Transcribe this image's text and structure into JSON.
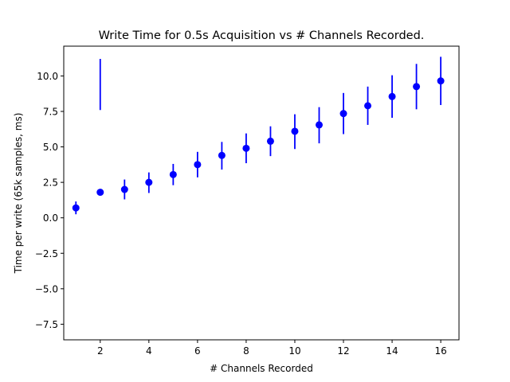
{
  "chart_data": {
    "type": "scatter",
    "title": "Write Time for 0.5s Acquisition vs # Channels Recorded.",
    "xlabel": "# Channels Recorded",
    "ylabel": "Time per write (65k samples, ms)",
    "xlim": [
      0.5,
      16.75
    ],
    "ylim": [
      -8.6,
      12.1
    ],
    "xticks": [
      2,
      4,
      6,
      8,
      10,
      12,
      14,
      16
    ],
    "xtick_labels": [
      "2",
      "4",
      "6",
      "8",
      "10",
      "12",
      "14",
      "16"
    ],
    "yticks": [
      -7.5,
      -5.0,
      -2.5,
      0.0,
      2.5,
      5.0,
      7.5,
      10.0
    ],
    "ytick_labels": [
      "−7.5",
      "−5.0",
      "−2.5",
      "0.0",
      "2.5",
      "5.0",
      "7.5",
      "10.0"
    ],
    "grid": false,
    "series": [
      {
        "color": "#0000ff",
        "x": [
          1,
          2,
          3,
          4,
          5,
          6,
          7,
          8,
          9,
          10,
          11,
          12,
          13,
          14,
          15,
          16
        ],
        "y": [
          0.7,
          1.8,
          2.0,
          2.5,
          3.05,
          3.75,
          4.4,
          4.9,
          5.4,
          6.1,
          6.55,
          7.35,
          7.9,
          8.55,
          9.25,
          9.65
        ],
        "yerr_low": [
          0.25,
          7.6,
          1.3,
          1.75,
          2.3,
          2.85,
          3.4,
          3.85,
          4.35,
          4.85,
          5.25,
          5.9,
          6.55,
          7.05,
          7.65,
          7.95
        ],
        "yerr_high": [
          1.15,
          11.2,
          2.7,
          3.2,
          3.8,
          4.65,
          5.35,
          5.95,
          6.45,
          7.3,
          7.8,
          8.8,
          9.25,
          10.05,
          10.85,
          11.35
        ]
      }
    ]
  }
}
